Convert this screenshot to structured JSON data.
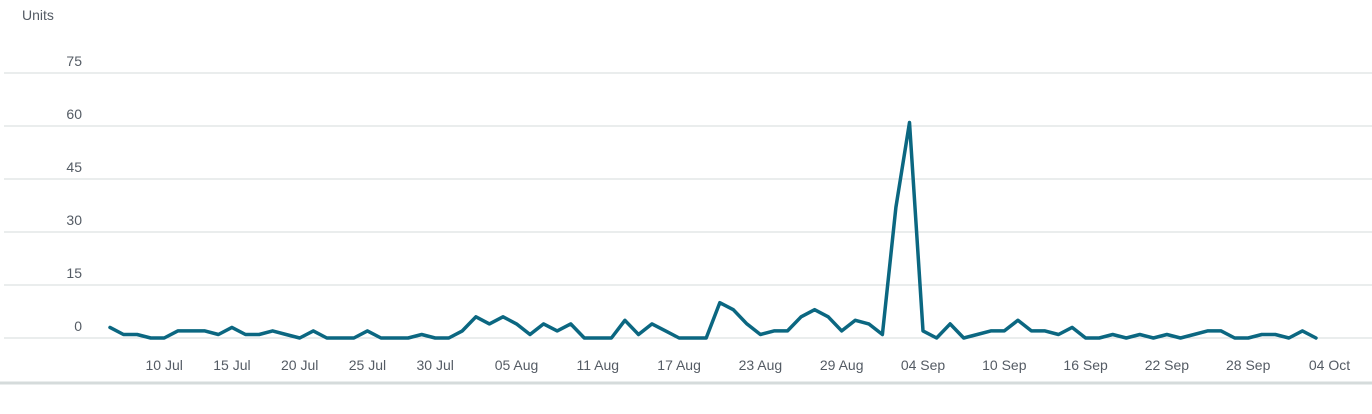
{
  "chart_data": {
    "type": "line",
    "ylabel": "Units",
    "ylim": [
      0,
      75
    ],
    "yticks": [
      0,
      15,
      30,
      45,
      60,
      75
    ],
    "grid": true,
    "line_color": "#0b6781",
    "x_start_date": "2024-07-06",
    "x_tick_labels": [
      {
        "date": "2024-07-10",
        "label": "10 Jul"
      },
      {
        "date": "2024-07-15",
        "label": "15 Jul"
      },
      {
        "date": "2024-07-20",
        "label": "20 Jul"
      },
      {
        "date": "2024-07-25",
        "label": "25 Jul"
      },
      {
        "date": "2024-07-30",
        "label": "30 Jul"
      },
      {
        "date": "2024-08-05",
        "label": "05 Aug"
      },
      {
        "date": "2024-08-11",
        "label": "11 Aug"
      },
      {
        "date": "2024-08-17",
        "label": "17 Aug"
      },
      {
        "date": "2024-08-23",
        "label": "23 Aug"
      },
      {
        "date": "2024-08-29",
        "label": "29 Aug"
      },
      {
        "date": "2024-09-04",
        "label": "04 Sep"
      },
      {
        "date": "2024-09-10",
        "label": "10 Sep"
      },
      {
        "date": "2024-09-16",
        "label": "16 Sep"
      },
      {
        "date": "2024-09-22",
        "label": "22 Sep"
      },
      {
        "date": "2024-09-28",
        "label": "28 Sep"
      },
      {
        "date": "2024-10-04",
        "label": "04 Oct"
      }
    ],
    "series": [
      {
        "values": [
          3,
          1,
          1,
          0,
          0,
          2,
          2,
          2,
          1,
          3,
          1,
          1,
          2,
          1,
          0,
          2,
          0,
          0,
          0,
          2,
          0,
          0,
          0,
          1,
          0,
          0,
          2,
          6,
          4,
          6,
          4,
          1,
          4,
          2,
          4,
          0,
          0,
          0,
          5,
          1,
          4,
          2,
          0,
          0,
          0,
          10,
          8,
          4,
          1,
          2,
          2,
          6,
          8,
          6,
          2,
          5,
          4,
          1,
          37,
          61,
          2,
          0,
          4,
          0,
          1,
          2,
          2,
          5,
          2,
          2,
          1,
          3,
          0,
          0,
          1,
          0,
          1,
          0,
          1,
          0,
          1,
          2,
          2,
          0,
          0,
          1,
          1,
          0,
          2,
          0
        ]
      }
    ]
  }
}
